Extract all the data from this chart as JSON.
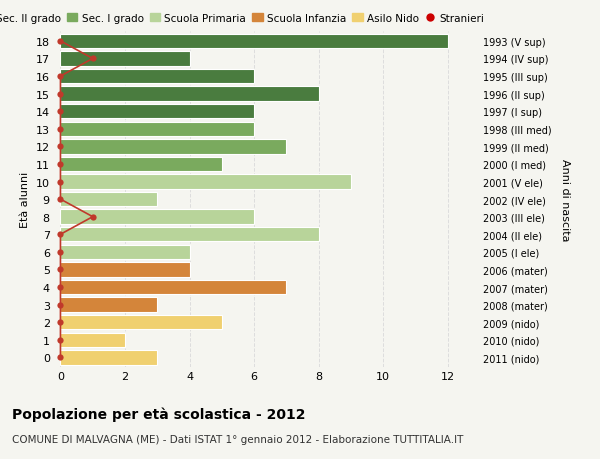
{
  "ages": [
    18,
    17,
    16,
    15,
    14,
    13,
    12,
    11,
    10,
    9,
    8,
    7,
    6,
    5,
    4,
    3,
    2,
    1,
    0
  ],
  "years": [
    "1993 (V sup)",
    "1994 (IV sup)",
    "1995 (III sup)",
    "1996 (II sup)",
    "1997 (I sup)",
    "1998 (III med)",
    "1999 (II med)",
    "2000 (I med)",
    "2001 (V ele)",
    "2002 (IV ele)",
    "2003 (III ele)",
    "2004 (II ele)",
    "2005 (I ele)",
    "2006 (mater)",
    "2007 (mater)",
    "2008 (mater)",
    "2009 (nido)",
    "2010 (nido)",
    "2011 (nido)"
  ],
  "values": [
    12,
    4,
    6,
    8,
    6,
    6,
    7,
    5,
    9,
    3,
    6,
    8,
    4,
    4,
    7,
    3,
    5,
    2,
    3
  ],
  "colors": [
    "#4a7c3f",
    "#4a7c3f",
    "#4a7c3f",
    "#4a7c3f",
    "#4a7c3f",
    "#7aaa5e",
    "#7aaa5e",
    "#7aaa5e",
    "#b8d49a",
    "#b8d49a",
    "#b8d49a",
    "#b8d49a",
    "#b8d49a",
    "#d4853a",
    "#d4853a",
    "#d4853a",
    "#f0d070",
    "#f0d070",
    "#f0d070"
  ],
  "stranieri_values": [
    0,
    1,
    0,
    0,
    0,
    0,
    0,
    0,
    0,
    0,
    1,
    0,
    0,
    0,
    0,
    0,
    0,
    0,
    0
  ],
  "legend_labels": [
    "Sec. II grado",
    "Sec. I grado",
    "Scuola Primaria",
    "Scuola Infanzia",
    "Asilo Nido",
    "Stranieri"
  ],
  "legend_colors": [
    "#4a7c3f",
    "#7aaa5e",
    "#b8d49a",
    "#d4853a",
    "#f0d070",
    "#cc0000"
  ],
  "title": "Popolazione per età scolastica - 2012",
  "subtitle": "COMUNE DI MALVAGNA (ME) - Dati ISTAT 1° gennaio 2012 - Elaborazione TUTTITALIA.IT",
  "ylabel": "Età alunni",
  "right_ylabel": "Anni di nascita",
  "xlabel_ticks": [
    0,
    2,
    4,
    6,
    8,
    10,
    12
  ],
  "xlim": [
    -0.2,
    13.0
  ],
  "ylim": [
    -0.55,
    18.55
  ],
  "bg_color": "#f5f5f0",
  "bar_height": 0.82,
  "stranieri_line_color": "#c0392b",
  "stranieri_dot_color": "#c0392b",
  "grid_color": "#dddddd"
}
